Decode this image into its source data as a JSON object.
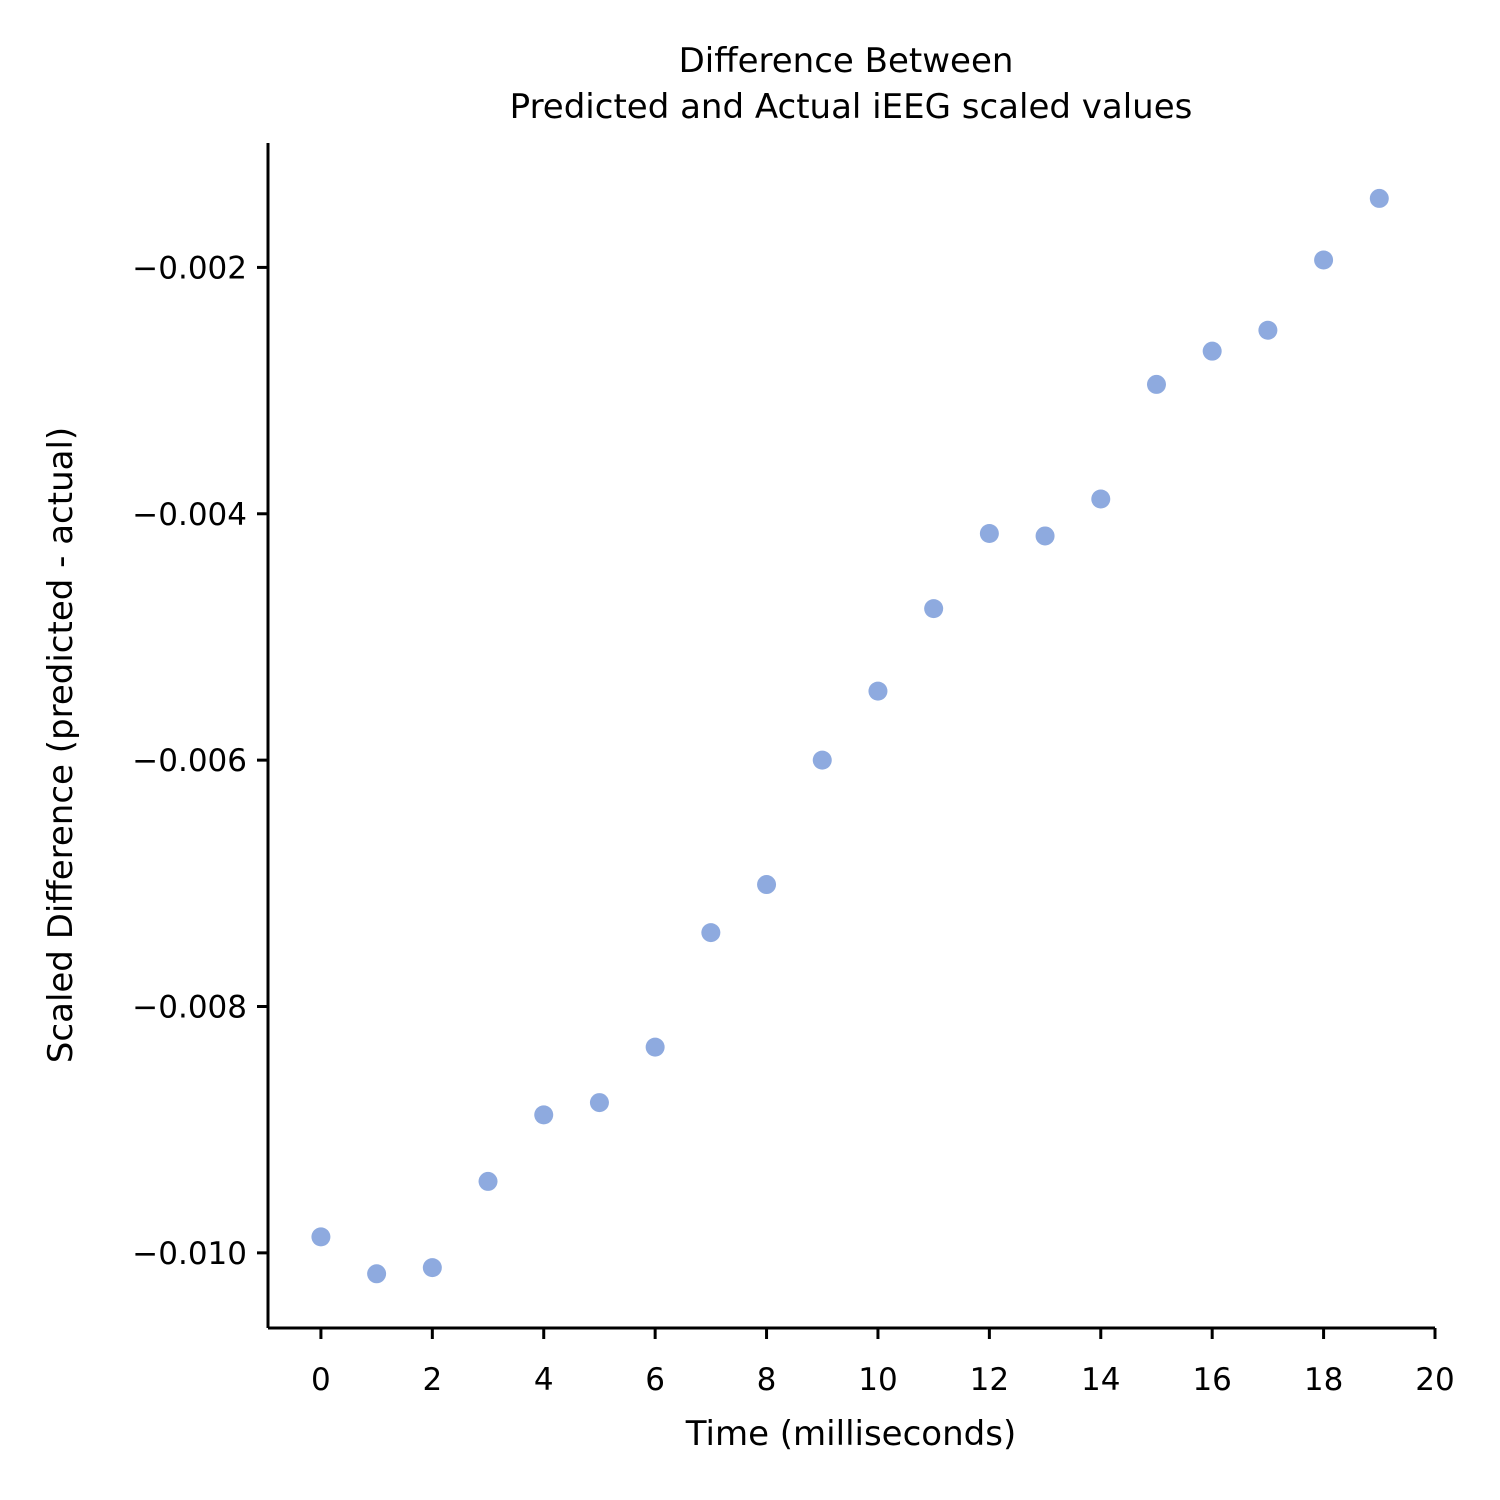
{
  "chart_data": {
    "type": "scatter",
    "title_lines": [
      "Difference Between",
      "Predicted and Actual iEEG scaled values"
    ],
    "xlabel": "Time (milliseconds)",
    "ylabel": "Scaled Difference (predicted - actual)",
    "xlim": [
      -0.95,
      20
    ],
    "ylim": [
      -0.01061,
      -0.00099
    ],
    "x_ticks": [
      0,
      2,
      4,
      6,
      8,
      10,
      12,
      14,
      16,
      18,
      20
    ],
    "x_tick_labels": [
      "0",
      "2",
      "4",
      "6",
      "8",
      "10",
      "12",
      "14",
      "16",
      "18",
      "20"
    ],
    "y_ticks": [
      -0.002,
      -0.004,
      -0.006,
      -0.008,
      -0.01
    ],
    "y_tick_labels": [
      "−0.002",
      "−0.004",
      "−0.006",
      "−0.008",
      "−0.010"
    ],
    "grid": false,
    "legend": "none",
    "point_color": "#8eaadf",
    "x": [
      0,
      1,
      2,
      3,
      4,
      5,
      6,
      7,
      8,
      9,
      10,
      11,
      12,
      13,
      14,
      15,
      16,
      17,
      18,
      19
    ],
    "y": [
      -0.00987,
      -0.01017,
      -0.01012,
      -0.00942,
      -0.00888,
      -0.00878,
      -0.00833,
      -0.0074,
      -0.00701,
      -0.006,
      -0.00544,
      -0.00477,
      -0.00416,
      -0.00418,
      -0.00388,
      -0.00295,
      -0.00268,
      -0.00251,
      -0.00194,
      -0.00144
    ]
  }
}
